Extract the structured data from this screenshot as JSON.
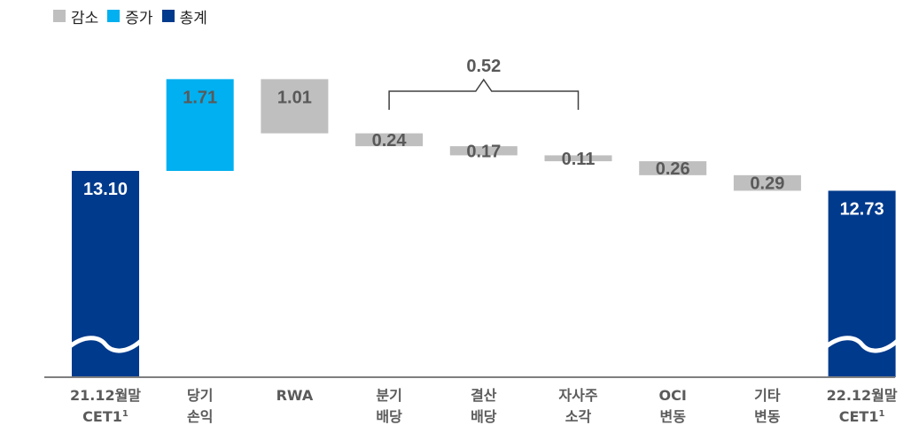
{
  "legend": [
    {
      "label": "감소",
      "color": "#bfbfbf"
    },
    {
      "label": "증가",
      "color": "#00b0f0"
    },
    {
      "label": "총계",
      "color": "#003a8c"
    }
  ],
  "colors": {
    "decrease": "#bfbfbf",
    "increase": "#00b0f0",
    "total": "#003a8c",
    "axis": "#7f7f7f",
    "category_text": "#5b5b5b",
    "decrease_label": "#595959",
    "total_label": "#ffffff"
  },
  "chart_data": {
    "type": "bar",
    "subtype": "waterfall",
    "title": "",
    "categories": [
      [
        "21.12월말",
        "CET1¹"
      ],
      [
        "당기",
        "손익"
      ],
      [
        "RWA"
      ],
      [
        "분기",
        "배당"
      ],
      [
        "결산",
        "배당"
      ],
      [
        "자사주",
        "소각"
      ],
      [
        "OCI",
        "변동"
      ],
      [
        "기타",
        "변동"
      ],
      [
        "22.12월말",
        "CET1¹"
      ]
    ],
    "values": [
      13.1,
      1.71,
      -1.01,
      -0.24,
      -0.17,
      -0.11,
      -0.26,
      -0.29,
      12.73
    ],
    "labels": [
      "13.10",
      "1.71",
      "1.01",
      "0.24",
      "0.17",
      "0.11",
      "0.26",
      "0.29",
      "12.73"
    ],
    "kinds": [
      "total",
      "increase",
      "decrease",
      "decrease",
      "decrease",
      "decrease",
      "decrease",
      "decrease",
      "total"
    ],
    "axis_break": true,
    "annotation": {
      "label": "0.52",
      "from_category": 3,
      "to_category": 5
    }
  }
}
